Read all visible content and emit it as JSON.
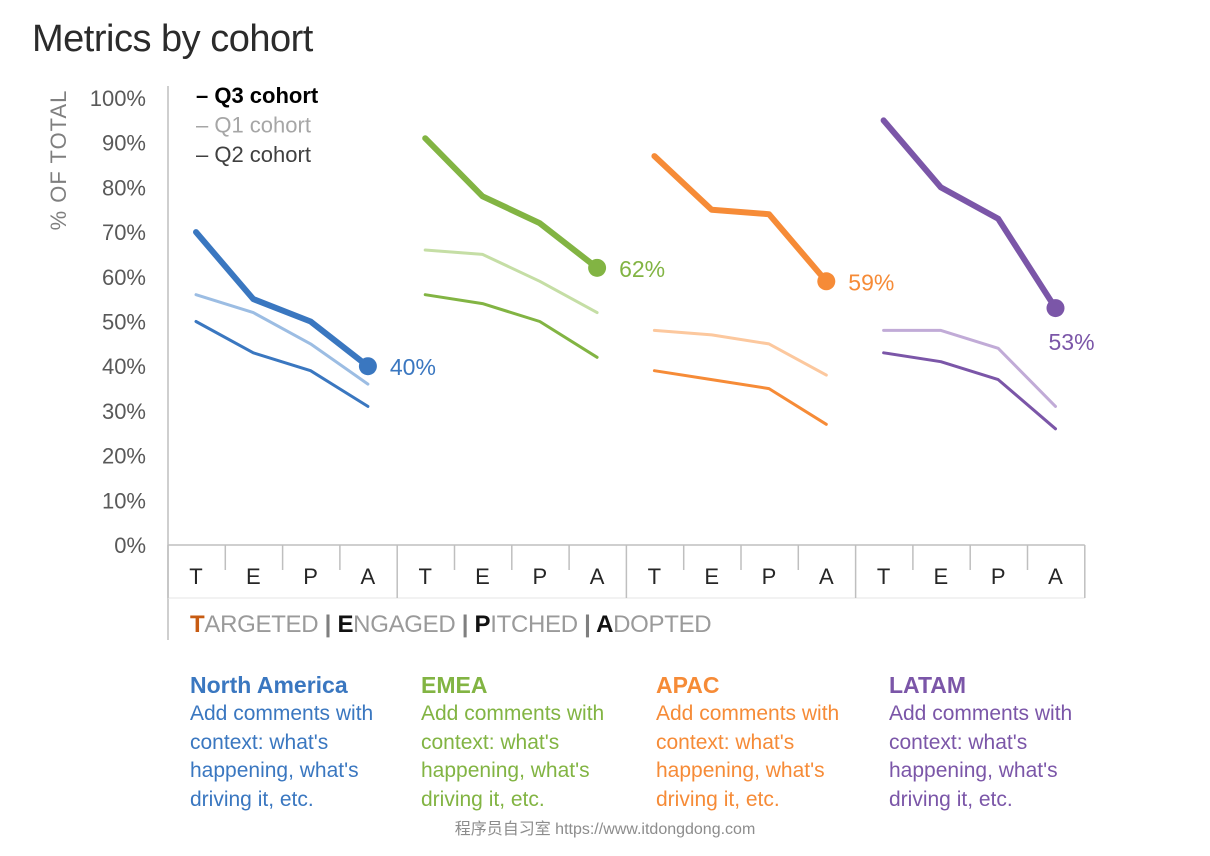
{
  "chart_data": {
    "type": "line",
    "title": "Metrics by cohort",
    "ylabel": "% OF TOTAL",
    "ylim": [
      0,
      100
    ],
    "yticks": [
      "0%",
      "10%",
      "20%",
      "30%",
      "40%",
      "50%",
      "60%",
      "70%",
      "80%",
      "90%",
      "100%"
    ],
    "stage_ticks": [
      "T",
      "E",
      "P",
      "A"
    ],
    "stage_legend": [
      {
        "initial": "T",
        "rest": "ARGETED"
      },
      {
        "initial": "E",
        "rest": "NGAGED"
      },
      {
        "initial": "P",
        "rest": "ITCHED"
      },
      {
        "initial": "A",
        "rest": "DOPTED"
      }
    ],
    "stage_separator": " | ",
    "legend": [
      {
        "label": "Q3 cohort",
        "color": "#000000",
        "bold": true
      },
      {
        "label": "Q1 cohort",
        "color": "#a6a6a6",
        "bold": false
      },
      {
        "label": "Q2 cohort",
        "color": "#404040",
        "bold": false
      }
    ],
    "legend_dash": "–",
    "groups": [
      {
        "region": "North America",
        "color": "#3a77c0",
        "light": "#9cbde3",
        "series": [
          {
            "name": "Q3 cohort",
            "values": [
              70,
              55,
              50,
              40
            ]
          },
          {
            "name": "Q1 cohort",
            "values": [
              56,
              52,
              45,
              36
            ]
          },
          {
            "name": "Q2 cohort",
            "values": [
              50,
              43,
              39,
              31
            ]
          }
        ],
        "end_label": "40%"
      },
      {
        "region": "EMEA",
        "color": "#82b443",
        "light": "#c5dea5",
        "series": [
          {
            "name": "Q3 cohort",
            "values": [
              91,
              78,
              72,
              62
            ]
          },
          {
            "name": "Q1 cohort",
            "values": [
              66,
              65,
              59,
              52
            ]
          },
          {
            "name": "Q2 cohort",
            "values": [
              56,
              54,
              50,
              42
            ]
          }
        ],
        "end_label": "62%"
      },
      {
        "region": "APAC",
        "color": "#f68b37",
        "light": "#fcc89e",
        "series": [
          {
            "name": "Q3 cohort",
            "values": [
              87,
              75,
              74,
              59
            ]
          },
          {
            "name": "Q1 cohort",
            "values": [
              48,
              47,
              45,
              38
            ]
          },
          {
            "name": "Q2 cohort",
            "values": [
              39,
              37,
              35,
              27
            ]
          }
        ],
        "end_label": "59%"
      },
      {
        "region": "LATAM",
        "color": "#7b56a8",
        "light": "#c1abd7",
        "series": [
          {
            "name": "Q3 cohort",
            "values": [
              95,
              80,
              73,
              53
            ]
          },
          {
            "name": "Q1 cohort",
            "values": [
              48,
              48,
              44,
              31
            ]
          },
          {
            "name": "Q2 cohort",
            "values": [
              43,
              41,
              37,
              26
            ]
          }
        ],
        "end_label": "53%"
      }
    ]
  },
  "regions": [
    {
      "name": "North America",
      "comment": "Add comments with context: what's happening, what's driving it, etc."
    },
    {
      "name": "EMEA",
      "comment": "Add comments with context: what's happening, what's driving it, etc."
    },
    {
      "name": "APAC",
      "comment": "Add comments with context: what's happening, what's driving it, etc."
    },
    {
      "name": "LATAM",
      "comment": "Add comments with context: what's happening, what's driving it, etc."
    }
  ],
  "watermark": "程序员自习室 https://www.itdongdong.com"
}
